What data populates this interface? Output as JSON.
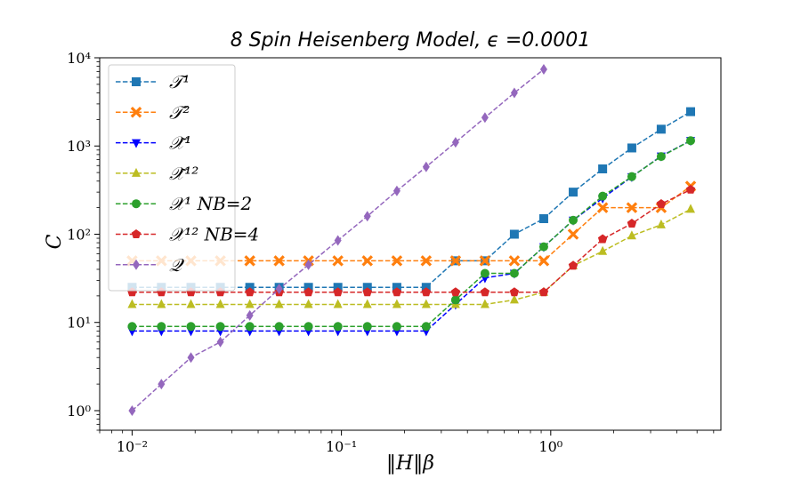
{
  "chart_data": {
    "type": "line",
    "title": "8 Spin Heisenberg Model, ϵ =0.0001",
    "xlabel": "‖H‖β",
    "ylabel": "C",
    "xscale": "log",
    "yscale": "log",
    "xlim": [
      0.007,
      6.5
    ],
    "ylim": [
      0.6,
      10000
    ],
    "grid": false,
    "legend_position": "top-left",
    "x_ticks": [
      {
        "value": 0.01,
        "label": "10⁻²"
      },
      {
        "value": 0.1,
        "label": "10⁻¹"
      },
      {
        "value": 1,
        "label": "10⁰"
      }
    ],
    "y_ticks": [
      {
        "value": 1,
        "label": "10⁰"
      },
      {
        "value": 10,
        "label": "10¹"
      },
      {
        "value": 100,
        "label": "10²"
      },
      {
        "value": 1000,
        "label": "10³"
      },
      {
        "value": 10000,
        "label": "10⁴"
      }
    ],
    "series": [
      {
        "name": "𝒯¹",
        "color": "#1f77b4",
        "marker": "square",
        "x": [
          0.01,
          0.0138,
          0.0191,
          0.0264,
          0.0365,
          0.0504,
          0.0696,
          0.0962,
          0.133,
          0.184,
          0.254,
          0.351,
          0.485,
          0.67,
          0.926,
          1.28,
          1.77,
          2.44,
          3.37,
          4.66
        ],
        "y": [
          25,
          25,
          25,
          25,
          25,
          25,
          25,
          25,
          25,
          25,
          25,
          50,
          50,
          100,
          150,
          300,
          550,
          950,
          1550,
          2450
        ]
      },
      {
        "name": "𝒯²",
        "color": "#ff7f0e",
        "marker": "x",
        "x": [
          0.01,
          0.0138,
          0.0191,
          0.0264,
          0.0365,
          0.0504,
          0.0696,
          0.0962,
          0.133,
          0.184,
          0.254,
          0.351,
          0.485,
          0.67,
          0.926,
          1.28,
          1.77,
          2.44,
          3.37,
          4.66
        ],
        "y": [
          50,
          50,
          50,
          50,
          50,
          50,
          50,
          50,
          50,
          50,
          50,
          50,
          50,
          50,
          50,
          100,
          200,
          200,
          200,
          350
        ]
      },
      {
        "name": "𝒳̃¹",
        "color": "#0000ff",
        "marker": "triangle-down",
        "x": [
          0.01,
          0.0138,
          0.0191,
          0.0264,
          0.0365,
          0.0504,
          0.0696,
          0.0962,
          0.133,
          0.184,
          0.254,
          0.351,
          0.485,
          0.67,
          0.926,
          1.28,
          1.77,
          2.44,
          3.37,
          4.66
        ],
        "y": [
          8,
          8,
          8,
          8,
          8,
          8,
          8,
          8,
          8,
          8,
          8,
          16,
          32,
          36,
          72,
          144,
          256,
          448,
          768,
          1152
        ]
      },
      {
        "name": "𝒳̃¹²",
        "color": "#bcbd22",
        "marker": "triangle-up",
        "x": [
          0.01,
          0.0138,
          0.0191,
          0.0264,
          0.0365,
          0.0504,
          0.0696,
          0.0962,
          0.133,
          0.184,
          0.254,
          0.351,
          0.485,
          0.67,
          0.926,
          1.28,
          1.77,
          2.44,
          3.37,
          4.66
        ],
        "y": [
          16,
          16,
          16,
          16,
          16,
          16,
          16,
          16,
          16,
          16,
          16,
          16,
          16,
          18,
          22,
          44,
          64,
          96,
          128,
          192
        ]
      },
      {
        "name": "𝒳¹ NB=2",
        "color": "#2ca02c",
        "marker": "circle",
        "x": [
          0.01,
          0.0138,
          0.0191,
          0.0264,
          0.0365,
          0.0504,
          0.0696,
          0.0962,
          0.133,
          0.184,
          0.254,
          0.351,
          0.485,
          0.67,
          0.926,
          1.28,
          1.77,
          2.44,
          3.37,
          4.66
        ],
        "y": [
          9,
          9,
          9,
          9,
          9,
          9,
          9,
          9,
          9,
          9,
          9,
          18,
          36,
          36,
          72,
          144,
          270,
          450,
          760,
          1150
        ]
      },
      {
        "name": "𝒳¹² NB=4",
        "color": "#d62728",
        "marker": "pentagon",
        "x": [
          0.01,
          0.0138,
          0.0191,
          0.0264,
          0.0365,
          0.0504,
          0.0696,
          0.0962,
          0.133,
          0.184,
          0.254,
          0.351,
          0.485,
          0.67,
          0.926,
          1.28,
          1.77,
          2.44,
          3.37,
          4.66
        ],
        "y": [
          22,
          22,
          22,
          22,
          22,
          22,
          22,
          22,
          22,
          22,
          22,
          22,
          22,
          22,
          22,
          44,
          88,
          132,
          220,
          320
        ]
      },
      {
        "name": "𝒬",
        "color": "#9467bd",
        "marker": "diamond",
        "x": [
          0.01,
          0.0138,
          0.0191,
          0.0264,
          0.0365,
          0.0504,
          0.0696,
          0.0962,
          0.133,
          0.184,
          0.254,
          0.351,
          0.485,
          0.67,
          0.926
        ],
        "y": [
          1,
          2,
          4,
          6,
          12,
          24,
          45,
          85,
          160,
          310,
          580,
          1100,
          2100,
          4000,
          7400
        ]
      }
    ]
  }
}
